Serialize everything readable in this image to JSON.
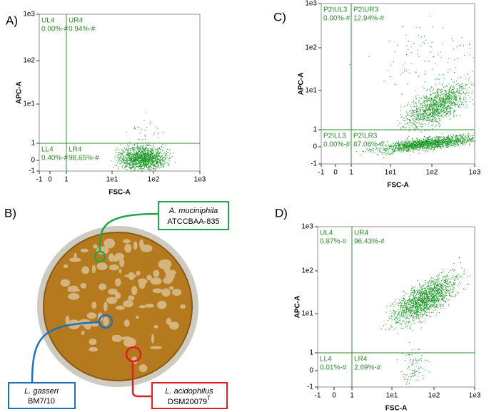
{
  "panel_a": {
    "label": "A)",
    "x_label": "FSC-A",
    "y_label": "APC-A",
    "x_ticks": [
      "-1",
      "0",
      "1",
      "1e1",
      "1e2",
      "1e3"
    ],
    "y_ticks": [
      "-1",
      "0",
      "1",
      "1e1",
      "1e2",
      "1e3"
    ],
    "quadrants": [
      {
        "name": "UL4",
        "value": "0.00%-#"
      },
      {
        "name": "UR4",
        "value": "0.94%-#"
      },
      {
        "name": "LL4",
        "value": "0.40%-#"
      },
      {
        "name": "LR4",
        "value": "98.65%-#"
      }
    ]
  },
  "panel_b": {
    "label": "B)",
    "labels": [
      {
        "species": "A. muciniphila",
        "strain": "ATCCBAA-835"
      },
      {
        "species": "L. gasseri",
        "strain": "BM7/10"
      },
      {
        "species": "L. acidophilus",
        "strain": "DSM20079",
        "superscript": "T"
      }
    ]
  },
  "panel_c": {
    "label": "C)",
    "x_label": "FSC-A",
    "y_label": "APC-A",
    "x_ticks": [
      "-1",
      "0",
      "1",
      "1e1",
      "1e2",
      "1e3"
    ],
    "y_ticks": [
      "-1",
      "0",
      "1",
      "1e1",
      "1e2",
      "1e3"
    ],
    "quadrants": [
      {
        "name": "P2\\UL3",
        "value": "0.00%-#"
      },
      {
        "name": "P2\\UR3",
        "value": "12.94%-#"
      },
      {
        "name": "P2\\LL3",
        "value": "0.00%-#"
      },
      {
        "name": "P2\\LR3",
        "value": "87.06%-#"
      }
    ]
  },
  "panel_d": {
    "label": "D)",
    "x_label": "FSC-A",
    "y_label": "APC-A",
    "x_ticks": [
      "-1",
      "0",
      "1",
      "1e1",
      "1e2",
      "1e3"
    ],
    "y_ticks": [
      "-1",
      "0",
      "1",
      "1e1",
      "1e2",
      "1e3"
    ],
    "quadrants": [
      {
        "name": "UL4",
        "value": "0.87%-#"
      },
      {
        "name": "UR4",
        "value": "96.43%-#"
      },
      {
        "name": "LL4",
        "value": "0.01%-#"
      },
      {
        "name": "LR4",
        "value": "2.69%-#"
      }
    ]
  }
}
